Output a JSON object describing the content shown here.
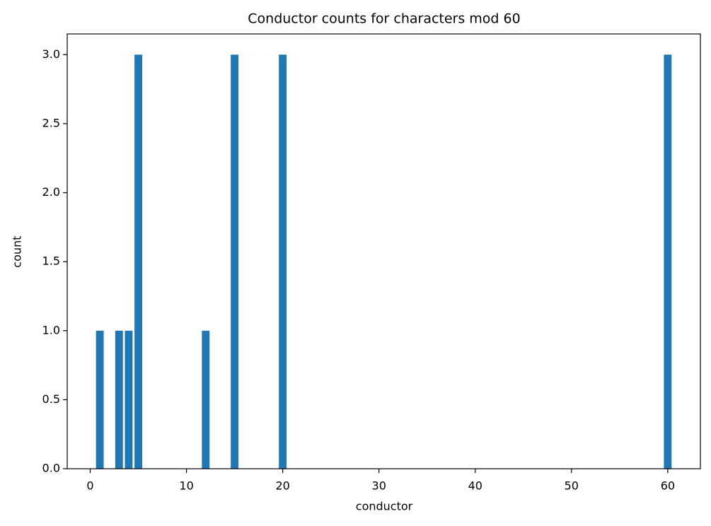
{
  "chart_data": {
    "type": "bar",
    "title": "Conductor counts for characters mod 60",
    "x_label": "conductor",
    "y_label": "count",
    "x": [
      1,
      3,
      4,
      5,
      12,
      15,
      20,
      60
    ],
    "values": [
      1,
      1,
      1,
      3,
      1,
      3,
      3,
      3
    ],
    "color": "#1f77b4",
    "xlim": [
      -2.39,
      63.39
    ],
    "xticks": [
      0,
      10,
      20,
      30,
      40,
      50,
      60
    ],
    "ylim": [
      0,
      3.15
    ],
    "yticks": [
      {
        "value": 0,
        "label": "0.0"
      },
      {
        "value": 0.5,
        "label": "0.5"
      },
      {
        "value": 1,
        "label": "1.0"
      },
      {
        "value": 1.5,
        "label": "1.5"
      },
      {
        "value": 2,
        "label": "2.0"
      },
      {
        "value": 2.5,
        "label": "2.5"
      },
      {
        "value": 3,
        "label": "3.0"
      }
    ],
    "grid": false
  }
}
